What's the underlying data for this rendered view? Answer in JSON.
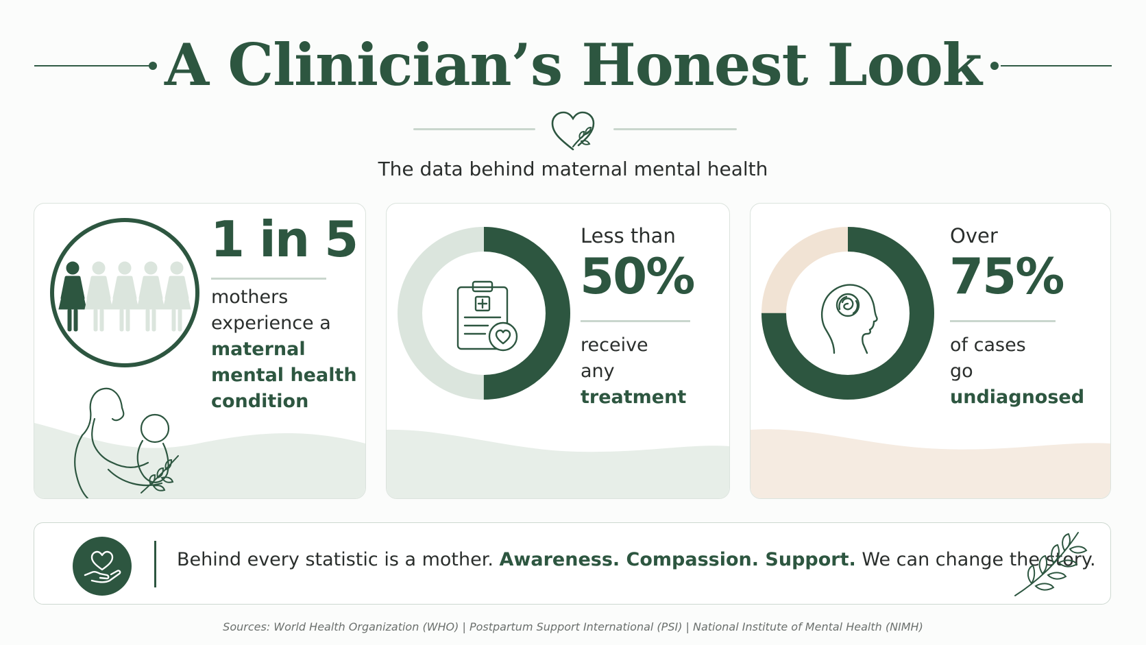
{
  "header": {
    "title": "A Clinician’s Honest Look",
    "subtitle": "The data behind maternal mental health"
  },
  "colors": {
    "primary": "#2d5640",
    "light_green": "#dbe5dd",
    "beige": "#f1e3d4"
  },
  "cards": [
    {
      "icon": "women-figures-icon",
      "stat": "1 in 5",
      "text_plain": "mothers experience a",
      "text_bold": "maternal mental health condition",
      "highlighted_figures": 1,
      "total_figures": 5
    },
    {
      "icon": "clipboard-heart-icon",
      "pre": "Less than",
      "stat": "50%",
      "text_plain": "receive any",
      "text_bold": "treatment",
      "fill_fraction": 0.5
    },
    {
      "icon": "head-flower-icon",
      "pre": "Over",
      "stat": "75%",
      "text_plain": "of cases go",
      "text_bold": "undiagnosed",
      "fill_fraction": 0.75
    }
  ],
  "footer": {
    "lead": "Behind every statistic is a mother.",
    "emphasis": "Awareness. Compassion. Support.",
    "tail": "We can change the story."
  },
  "sources": "Sources: World Health Organization (WHO) | Postpartum Support International (PSI) | National Institute of Mental Health (NIMH)"
}
